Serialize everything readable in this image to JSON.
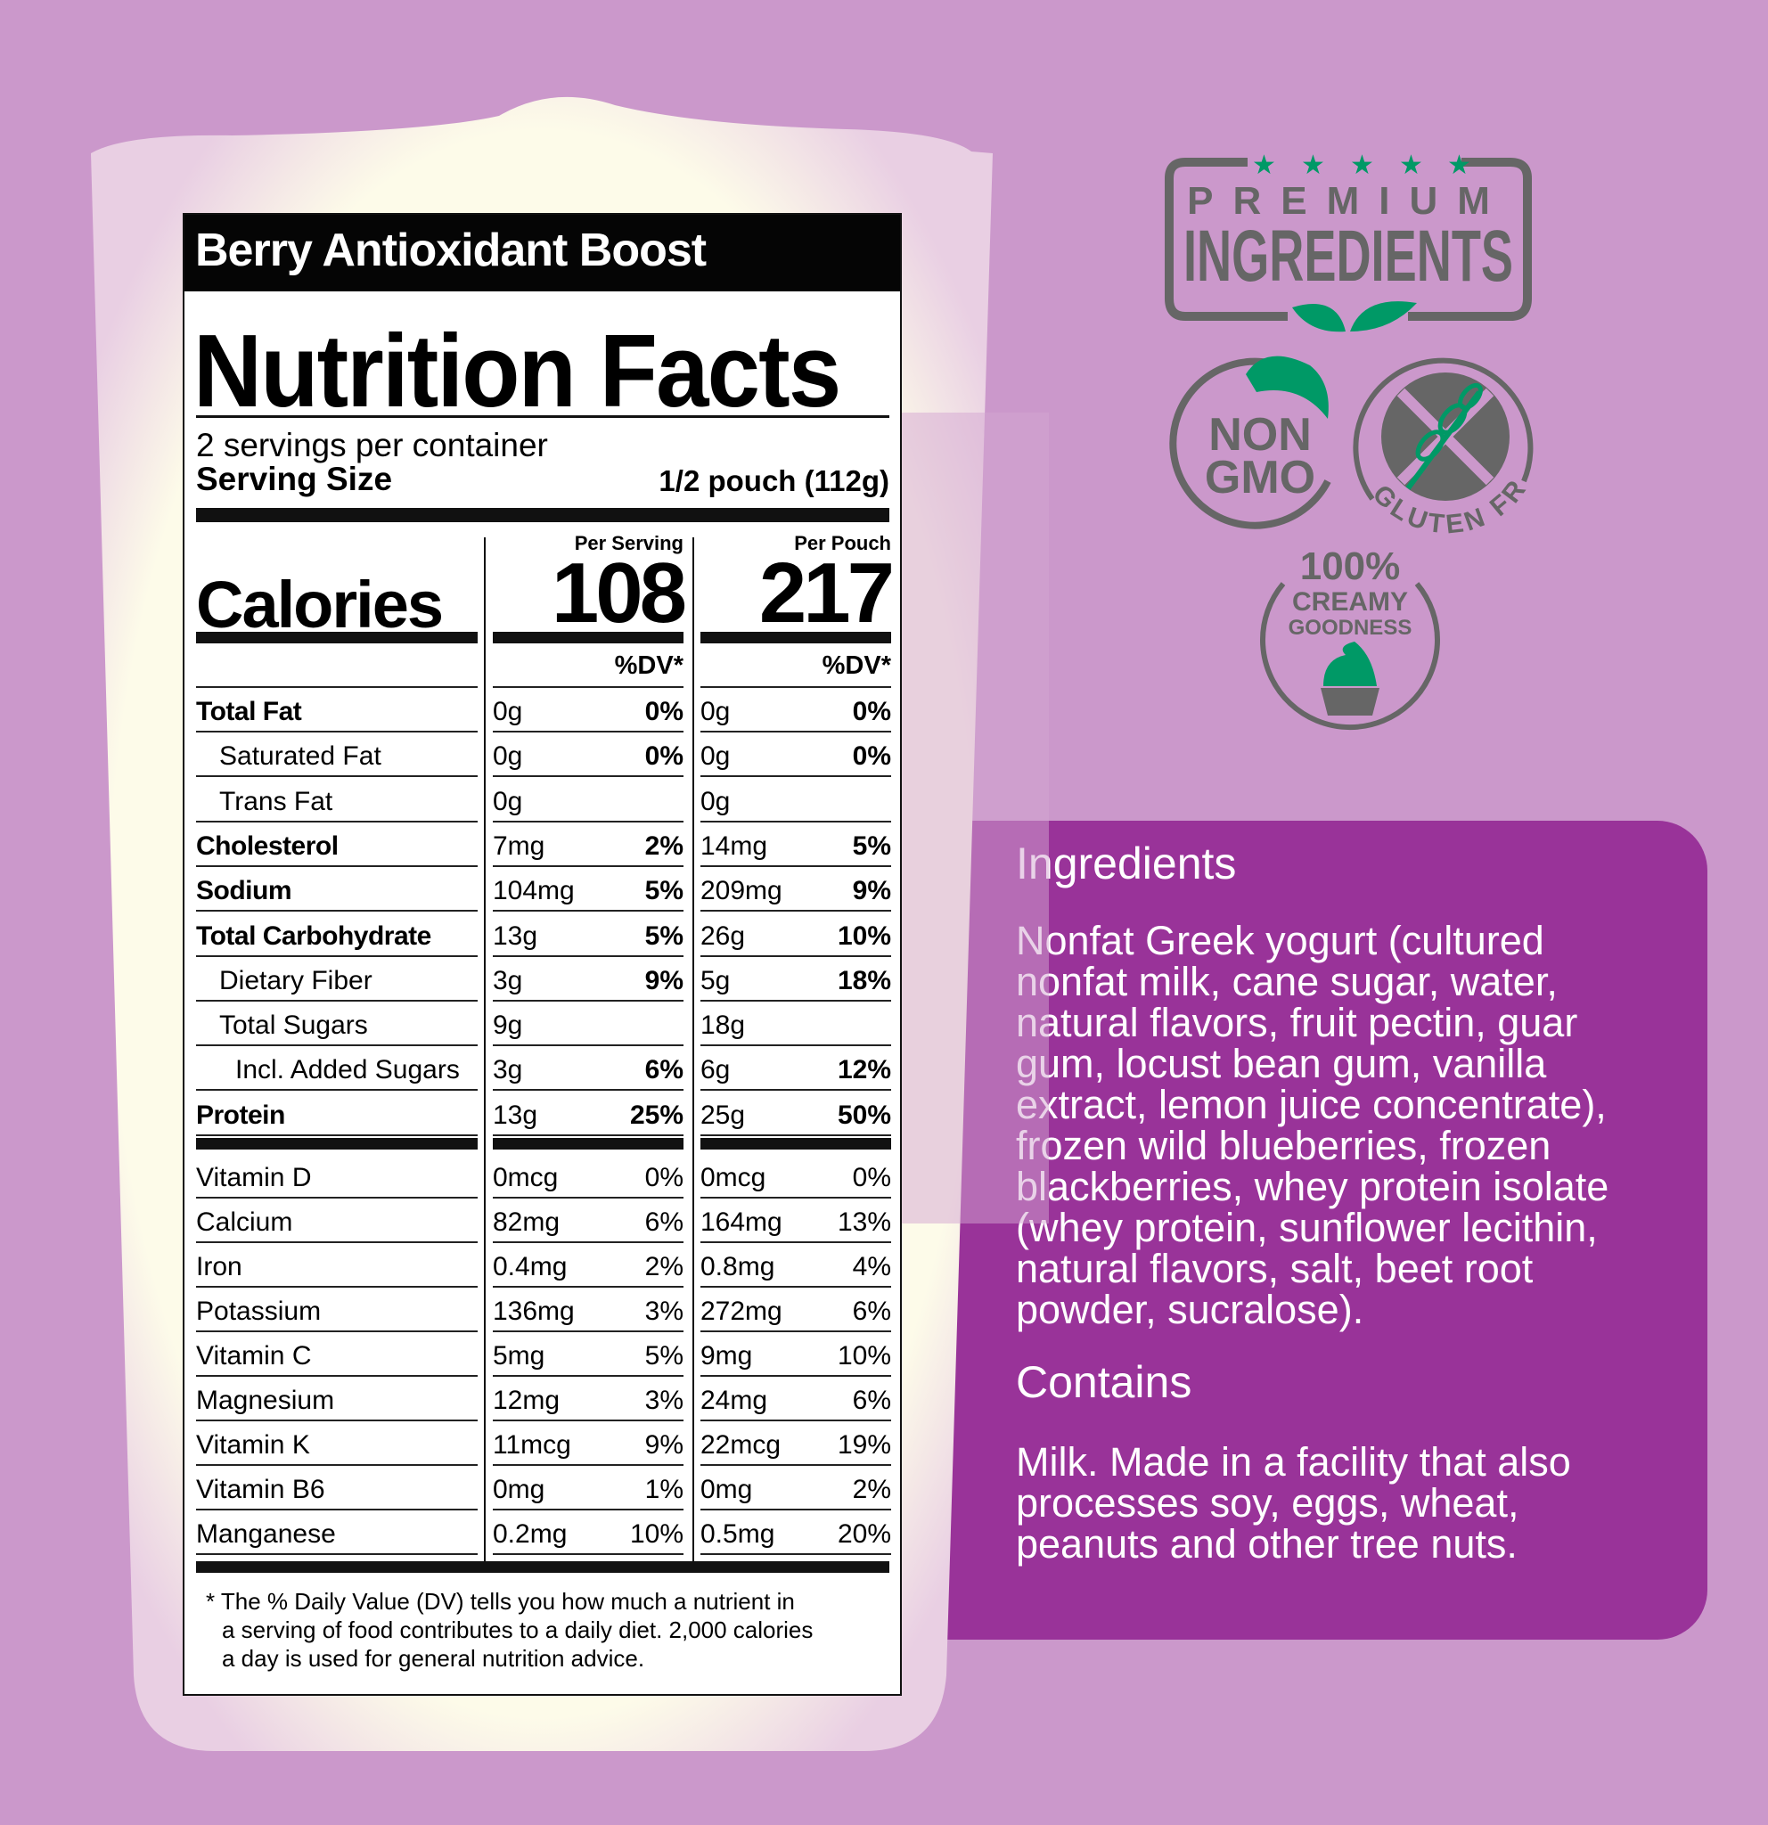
{
  "product_title": "Berry Antioxidant Boost",
  "label": {
    "heading": "Nutrition Facts",
    "servings": "2 servings per container",
    "serving_size_label": "Serving Size",
    "serving_size_value": "1/2 pouch (112g)",
    "per_serving_label": "Per Serving",
    "per_pouch_label": "Per Pouch",
    "calories_label": "Calories",
    "calories_serving": "108",
    "calories_pouch": "217",
    "dv_header": "%DV*",
    "nutrients": [
      {
        "name": "Total Fat",
        "level": 0,
        "bold": true,
        "s_amt": "0g",
        "s_dv": "0%",
        "p_amt": "0g",
        "p_dv": "0%"
      },
      {
        "name": "Saturated Fat",
        "level": 1,
        "bold": false,
        "s_amt": "0g",
        "s_dv": "0%",
        "p_amt": "0g",
        "p_dv": "0%"
      },
      {
        "name": "Trans Fat",
        "level": 1,
        "bold": false,
        "s_amt": "0g",
        "s_dv": "",
        "p_amt": "0g",
        "p_dv": ""
      },
      {
        "name": "Cholesterol",
        "level": 0,
        "bold": true,
        "s_amt": "7mg",
        "s_dv": "2%",
        "p_amt": "14mg",
        "p_dv": "5%"
      },
      {
        "name": "Sodium",
        "level": 0,
        "bold": true,
        "s_amt": "104mg",
        "s_dv": "5%",
        "p_amt": "209mg",
        "p_dv": "9%"
      },
      {
        "name": "Total Carbohydrate",
        "level": 0,
        "bold": true,
        "s_amt": "13g",
        "s_dv": "5%",
        "p_amt": "26g",
        "p_dv": "10%"
      },
      {
        "name": "Dietary Fiber",
        "level": 1,
        "bold": false,
        "s_amt": "3g",
        "s_dv": "9%",
        "p_amt": "5g",
        "p_dv": "18%"
      },
      {
        "name": "Total Sugars",
        "level": 1,
        "bold": false,
        "s_amt": "9g",
        "s_dv": "",
        "p_amt": "18g",
        "p_dv": ""
      },
      {
        "name": "Incl. Added Sugars",
        "level": 2,
        "bold": false,
        "s_amt": "3g",
        "s_dv": "6%",
        "p_amt": "6g",
        "p_dv": "12%"
      },
      {
        "name": "Protein",
        "level": 0,
        "bold": true,
        "s_amt": "13g",
        "s_dv": "25%",
        "p_amt": "25g",
        "p_dv": "50%"
      }
    ],
    "vitamins": [
      {
        "name": "Vitamin D",
        "s_amt": "0mcg",
        "s_dv": "0%",
        "p_amt": "0mcg",
        "p_dv": "0%"
      },
      {
        "name": "Calcium",
        "s_amt": "82mg",
        "s_dv": "6%",
        "p_amt": "164mg",
        "p_dv": "13%"
      },
      {
        "name": "Iron",
        "s_amt": "0.4mg",
        "s_dv": "2%",
        "p_amt": "0.8mg",
        "p_dv": "4%"
      },
      {
        "name": "Potassium",
        "s_amt": "136mg",
        "s_dv": "3%",
        "p_amt": "272mg",
        "p_dv": "6%"
      },
      {
        "name": "Vitamin C",
        "s_amt": "5mg",
        "s_dv": "5%",
        "p_amt": "9mg",
        "p_dv": "10%"
      },
      {
        "name": "Magnesium",
        "s_amt": "12mg",
        "s_dv": "3%",
        "p_amt": "24mg",
        "p_dv": "6%"
      },
      {
        "name": "Vitamin K",
        "s_amt": "11mcg",
        "s_dv": "9%",
        "p_amt": "22mcg",
        "p_dv": "19%"
      },
      {
        "name": "Vitamin B6",
        "s_amt": "0mg",
        "s_dv": "1%",
        "p_amt": "0mg",
        "p_dv": "2%"
      },
      {
        "name": "Manganese",
        "s_amt": "0.2mg",
        "s_dv": "10%",
        "p_amt": "0.5mg",
        "p_dv": "20%"
      }
    ],
    "footnote": [
      "* The % Daily Value (DV) tells you how much a nutrient in",
      "a serving of food contributes to a daily diet. 2,000 calories",
      "a day is used for general nutrition advice."
    ]
  },
  "badges": {
    "premium_top": "PREMIUM",
    "premium_bottom": "INGREDIENTS",
    "non": "NON",
    "gmo": "GMO",
    "gluten_free": "GLUTEN FREE",
    "creamy_1": "100%",
    "creamy_2": "CREAMY",
    "creamy_3": "GOODNESS"
  },
  "ingredients": {
    "heading": "Ingredients",
    "text": "Nonfat Greek yogurt (cultured nonfat milk, cane sugar, water, natural flavors, fruit pectin, guar gum, locust bean gum, vanilla extract, lemon juice concentrate), frozen wild blueberries, frozen blackberries, whey protein isolate (whey protein, sunflower lecithin, natural flavors, salt, beet root powder, sucralose).",
    "contains_heading": "Contains",
    "contains_text": "Milk. Made in a facility that also processes soy, eggs, wheat, peanuts and other tree nuts."
  },
  "colors": {
    "background": "#cb98cb",
    "panel": "#993399",
    "badge_gray": "#666666",
    "badge_green": "#009966",
    "cup": "#fdfbe9"
  }
}
